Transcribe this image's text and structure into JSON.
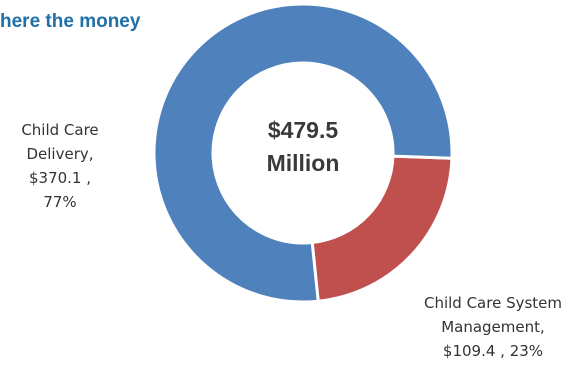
{
  "title": "here the money",
  "center_label": {
    "amount": "$479.5",
    "unit": "Million"
  },
  "colors": {
    "delivery": "#4f81bd",
    "management": "#c0504d",
    "title": "#1f6fa8"
  },
  "chart_data": {
    "type": "pie",
    "donut": true,
    "total_label": "$479.5 Million",
    "slices": [
      {
        "label_lines": [
          "Child Care",
          "Delivery,",
          "$370.1 ,",
          "77%"
        ],
        "name": "Child Care Delivery",
        "value": 370.1,
        "percent": 77,
        "color": "#4f81bd"
      },
      {
        "label_lines": [
          "Child Care System",
          "Management,",
          "$109.4 , 23%"
        ],
        "name": "Child Care System Management",
        "value": 109.4,
        "percent": 23,
        "color": "#c0504d"
      }
    ]
  }
}
